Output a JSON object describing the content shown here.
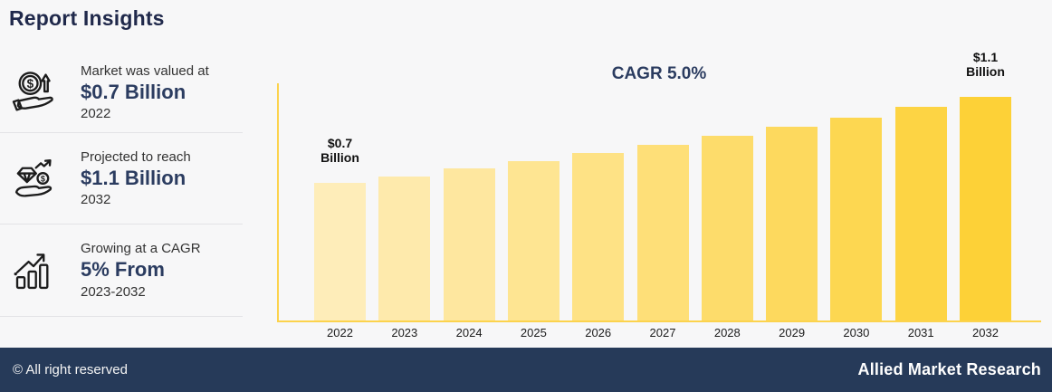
{
  "header": {
    "title": "Report Insights"
  },
  "insights": [
    {
      "icon": "hand-coin-growth-icon",
      "line1": "Market was valued at",
      "value": "$0.7 Billion",
      "line3": "2022"
    },
    {
      "icon": "hand-diamond-coin-icon",
      "line1": "Projected to reach",
      "value": "$1.1 Billion",
      "line3": "2032"
    },
    {
      "icon": "growth-bar-chart-icon",
      "line1": "Growing at a CAGR",
      "value": "5% From",
      "line3": "2023-2032"
    }
  ],
  "chart_data": {
    "type": "bar",
    "title": "CAGR 5.0%",
    "categories": [
      "2022",
      "2023",
      "2024",
      "2025",
      "2026",
      "2027",
      "2028",
      "2029",
      "2030",
      "2031",
      "2032"
    ],
    "values": [
      0.7,
      0.735,
      0.772,
      0.81,
      0.851,
      0.893,
      0.938,
      0.985,
      1.034,
      1.086,
      1.14
    ],
    "unit": "USD Billion",
    "ylim": [
      0,
      1.2
    ],
    "grid": false,
    "legend": "none",
    "bar_color_start": "#feedb9",
    "bar_color_end": "#fdd137",
    "axis_color": "#fcd34d",
    "annotations": [
      {
        "bar": "2022",
        "line1": "$0.7",
        "line2": "Billion"
      },
      {
        "bar": "2032",
        "line1": "$1.1",
        "line2": "Billion"
      }
    ]
  },
  "footer": {
    "left": "© All right reserved",
    "right": "Allied Market Research"
  },
  "colors": {
    "accent_navy": "#2b3c60",
    "footer_bg": "#263a59",
    "background": "#f7f7f8"
  }
}
